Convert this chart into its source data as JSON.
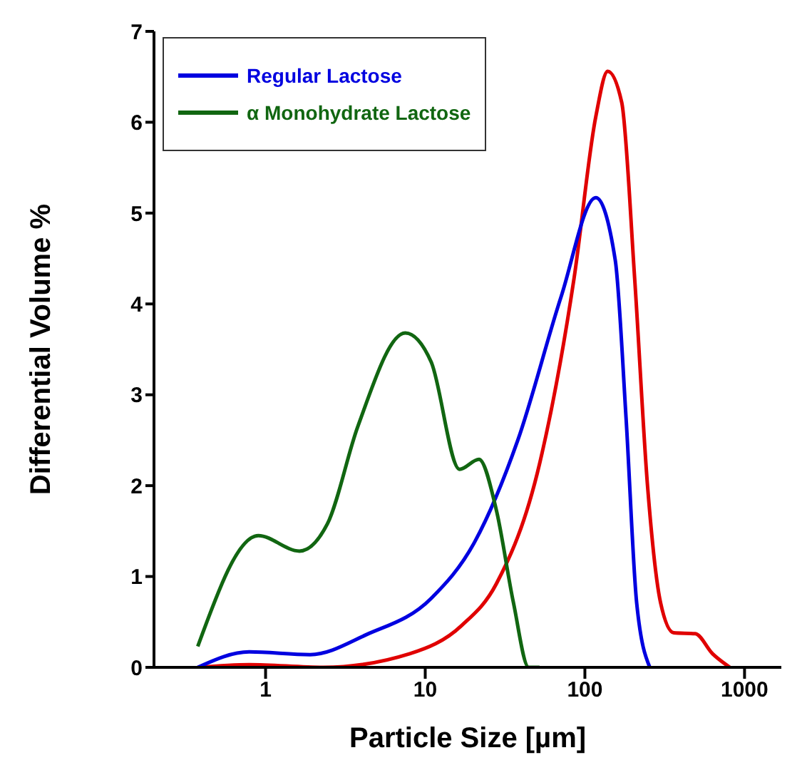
{
  "chart_data": {
    "type": "line",
    "xlabel": "Particle Size [µm]",
    "ylabel": "Differential Volume %",
    "log": "x",
    "xlim": [
      0.2,
      1700
    ],
    "xticks": [
      1,
      10,
      100,
      1000
    ],
    "ylim": [
      0,
      7
    ],
    "yticks": [
      0,
      1,
      2,
      3,
      4,
      5,
      6,
      7
    ],
    "legend": "top left",
    "marker": "none",
    "line_style": "solid",
    "series": [
      {
        "color": "#e00000",
        "x": [
          0.376,
          0.79,
          2.3,
          8.0,
          16.9,
          27.9,
          52,
          85.5,
          117,
          139,
          170,
          205,
          247,
          298,
          360,
          491,
          630,
          810
        ],
        "values": [
          0,
          0.03,
          0,
          0.15,
          0.46,
          0.92,
          2.24,
          4.28,
          6.06,
          6.56,
          6.22,
          4.28,
          1.99,
          0.71,
          0.38,
          0.37,
          0.15,
          0
        ]
      },
      {
        "name": "Regular Lactose",
        "color": "#0000e0",
        "x": [
          0.376,
          0.79,
          1.9,
          4.28,
          10.9,
          20.4,
          38,
          71,
          117,
          155,
          181,
          211,
          255
        ],
        "values": [
          0,
          0.17,
          0.14,
          0.36,
          0.76,
          1.38,
          2.5,
          4.08,
          5.17,
          4.48,
          2.75,
          0.71,
          0
        ]
      },
      {
        "name": "α Monohydrate Lactose",
        "color": "#116611",
        "x": [
          0.376,
          0.9,
          1.63,
          2.44,
          3.78,
          7.5,
          10.9,
          16.4,
          21.7,
          27.9,
          35.7,
          44.5,
          52
        ],
        "values": [
          0.23,
          1.45,
          1.28,
          1.58,
          2.65,
          3.68,
          3.36,
          2.18,
          2.29,
          1.73,
          0.71,
          0,
          0
        ]
      }
    ]
  }
}
